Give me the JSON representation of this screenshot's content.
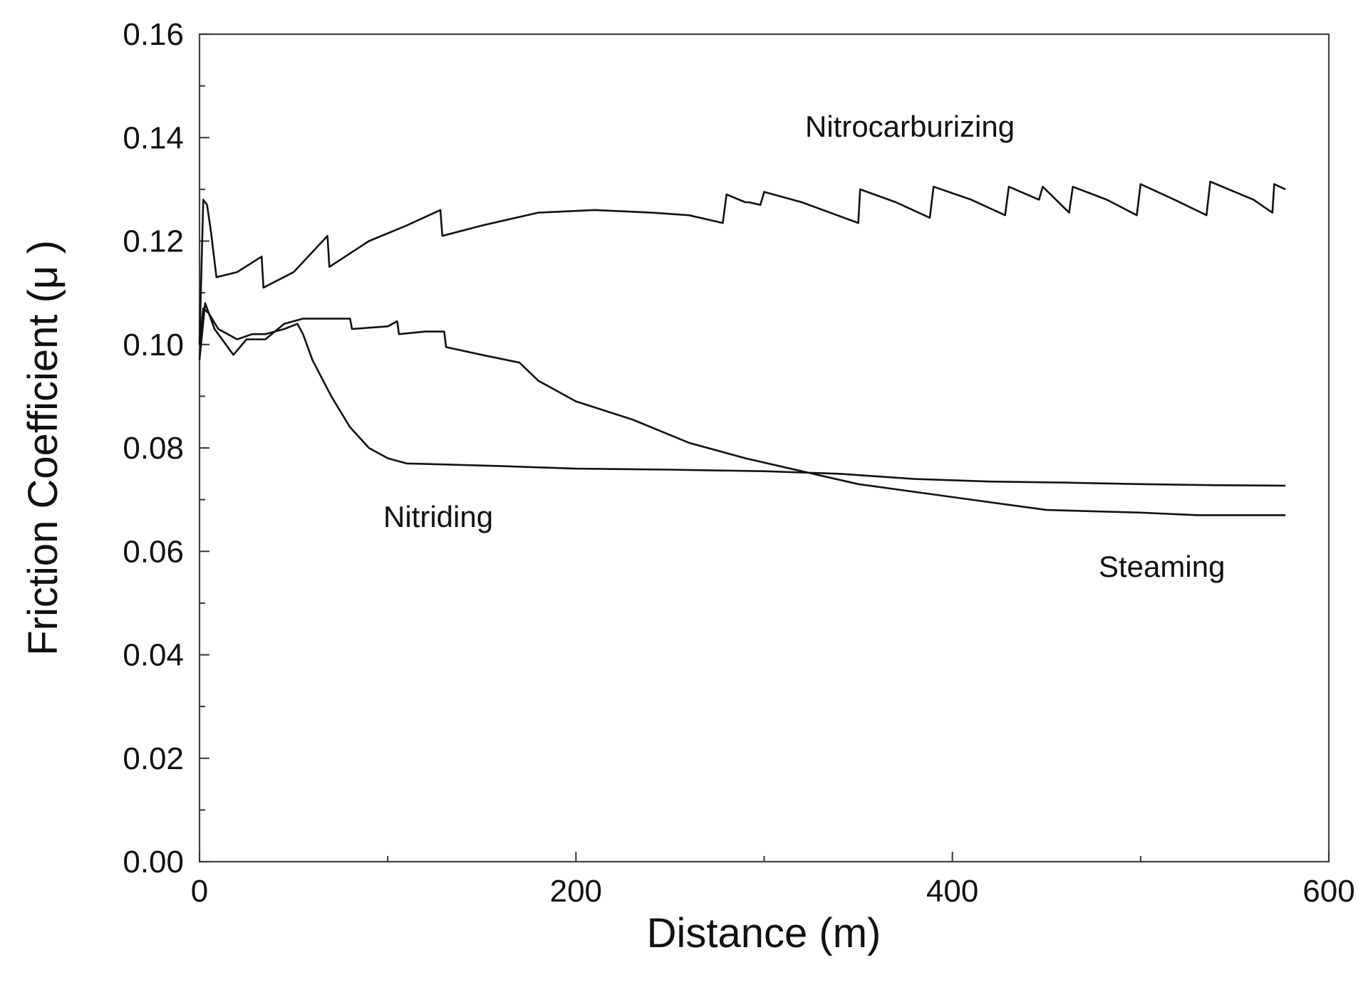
{
  "chart_data": {
    "type": "line",
    "title": "",
    "xlabel": "Distance (m)",
    "ylabel": "Friction Coefficient (μ )",
    "xlim": [
      0,
      600
    ],
    "ylim": [
      0,
      0.16
    ],
    "grid": false,
    "x_ticks": [
      "0",
      "200",
      "400",
      "600"
    ],
    "y_ticks": [
      "0.00",
      "0.02",
      "0.04",
      "0.06",
      "0.08",
      "0.10",
      "0.12",
      "0.14",
      "0.16"
    ],
    "series": [
      {
        "name": "Nitrocarburizing",
        "x": [
          0,
          2,
          4,
          6,
          9,
          20,
          33,
          34,
          50,
          68,
          69,
          90,
          110,
          128,
          129,
          150,
          180,
          210,
          240,
          260,
          278,
          280,
          290,
          292,
          298,
          300,
          320,
          350,
          351,
          370,
          388,
          390,
          410,
          428,
          430,
          446,
          448,
          462,
          464,
          482,
          498,
          500,
          518,
          535,
          537,
          560,
          570,
          571,
          577
        ],
        "values": [
          0.1,
          0.128,
          0.127,
          0.122,
          0.113,
          0.114,
          0.117,
          0.111,
          0.114,
          0.121,
          0.115,
          0.12,
          0.123,
          0.126,
          0.121,
          0.123,
          0.1255,
          0.126,
          0.1255,
          0.125,
          0.1235,
          0.129,
          0.1275,
          0.1275,
          0.127,
          0.1295,
          0.1275,
          0.1235,
          0.13,
          0.1275,
          0.1245,
          0.1305,
          0.128,
          0.125,
          0.1305,
          0.128,
          0.1305,
          0.1255,
          0.1305,
          0.128,
          0.125,
          0.131,
          0.128,
          0.125,
          0.1315,
          0.128,
          0.1255,
          0.131,
          0.13
        ]
      },
      {
        "name": "Nitriding",
        "x": [
          0,
          2,
          5,
          10,
          15,
          20,
          28,
          35,
          45,
          52,
          55,
          60,
          70,
          80,
          90,
          100,
          110,
          130,
          160,
          200,
          250,
          300,
          340,
          380,
          420,
          460,
          500,
          540,
          577
        ],
        "values": [
          0.1,
          0.107,
          0.106,
          0.103,
          0.102,
          0.101,
          0.102,
          0.102,
          0.103,
          0.104,
          0.102,
          0.097,
          0.09,
          0.084,
          0.08,
          0.078,
          0.077,
          0.0768,
          0.0765,
          0.076,
          0.0758,
          0.0755,
          0.075,
          0.074,
          0.0735,
          0.0733,
          0.073,
          0.0728,
          0.0727
        ]
      },
      {
        "name": "Steaming",
        "x": [
          0,
          3,
          8,
          12,
          18,
          25,
          35,
          45,
          55,
          70,
          80,
          81,
          100,
          105,
          106,
          120,
          130,
          131,
          150,
          170,
          180,
          200,
          230,
          260,
          290,
          320,
          350,
          400,
          450,
          500,
          530,
          577
        ],
        "values": [
          0.097,
          0.108,
          0.103,
          0.101,
          0.098,
          0.101,
          0.101,
          0.104,
          0.105,
          0.105,
          0.105,
          0.103,
          0.1035,
          0.1045,
          0.102,
          0.1025,
          0.1025,
          0.0995,
          0.098,
          0.0965,
          0.093,
          0.089,
          0.0855,
          0.081,
          0.078,
          0.0755,
          0.073,
          0.0705,
          0.068,
          0.0675,
          0.067,
          0.067
        ]
      }
    ],
    "annotations": [
      {
        "text": "Nitrocarburizing",
        "series": "Nitrocarburizing"
      },
      {
        "text": "Nitriding",
        "series": "Nitriding"
      },
      {
        "text": "Steaming",
        "series": "Steaming"
      }
    ]
  }
}
